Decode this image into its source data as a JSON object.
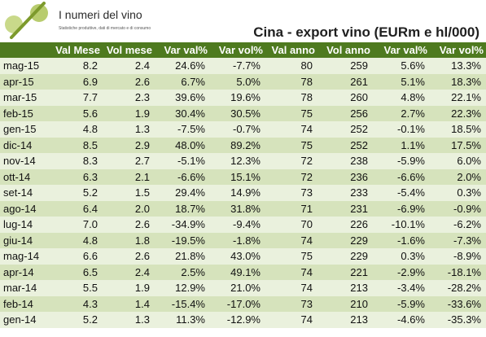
{
  "logo": {
    "title": "I numeri del vino",
    "subtitle": "Statistiche produttive, dati di mercato e di consumo"
  },
  "title": "Cina - export vino (EURm e hl/000)",
  "columns": [
    "",
    "Val Mese",
    "Vol mese",
    "Var val%",
    "Var vol%",
    "Val anno",
    "Vol anno",
    "Var val%",
    "Var vol%"
  ],
  "rows": [
    [
      "mag-15",
      "8.2",
      "2.4",
      "24.6%",
      "-7.7%",
      "80",
      "259",
      "5.6%",
      "13.3%"
    ],
    [
      "apr-15",
      "6.9",
      "2.6",
      "6.7%",
      "5.0%",
      "78",
      "261",
      "5.1%",
      "18.3%"
    ],
    [
      "mar-15",
      "7.7",
      "2.3",
      "39.6%",
      "19.6%",
      "78",
      "260",
      "4.8%",
      "22.1%"
    ],
    [
      "feb-15",
      "5.6",
      "1.9",
      "30.4%",
      "30.5%",
      "75",
      "256",
      "2.7%",
      "22.3%"
    ],
    [
      "gen-15",
      "4.8",
      "1.3",
      "-7.5%",
      "-0.7%",
      "74",
      "252",
      "-0.1%",
      "18.5%"
    ],
    [
      "dic-14",
      "8.5",
      "2.9",
      "48.0%",
      "89.2%",
      "75",
      "252",
      "1.1%",
      "17.5%"
    ],
    [
      "nov-14",
      "8.3",
      "2.7",
      "-5.1%",
      "12.3%",
      "72",
      "238",
      "-5.9%",
      "6.0%"
    ],
    [
      "ott-14",
      "6.3",
      "2.1",
      "-6.6%",
      "15.1%",
      "72",
      "236",
      "-6.6%",
      "2.0%"
    ],
    [
      "set-14",
      "5.2",
      "1.5",
      "29.4%",
      "14.9%",
      "73",
      "233",
      "-5.4%",
      "0.3%"
    ],
    [
      "ago-14",
      "6.4",
      "2.0",
      "18.7%",
      "31.8%",
      "71",
      "231",
      "-6.9%",
      "-0.9%"
    ],
    [
      "lug-14",
      "7.0",
      "2.6",
      "-34.9%",
      "-9.4%",
      "70",
      "226",
      "-10.1%",
      "-6.2%"
    ],
    [
      "giu-14",
      "4.8",
      "1.8",
      "-19.5%",
      "-1.8%",
      "74",
      "229",
      "-1.6%",
      "-7.3%"
    ],
    [
      "mag-14",
      "6.6",
      "2.6",
      "21.8%",
      "43.0%",
      "75",
      "229",
      "0.3%",
      "-8.9%"
    ],
    [
      "apr-14",
      "6.5",
      "2.4",
      "2.5%",
      "49.1%",
      "74",
      "221",
      "-2.9%",
      "-18.1%"
    ],
    [
      "mar-14",
      "5.5",
      "1.9",
      "12.9%",
      "21.0%",
      "74",
      "213",
      "-3.4%",
      "-28.2%"
    ],
    [
      "feb-14",
      "4.3",
      "1.4",
      "-15.4%",
      "-17.0%",
      "73",
      "210",
      "-5.9%",
      "-33.6%"
    ],
    [
      "gen-14",
      "5.2",
      "1.3",
      "11.3%",
      "-12.9%",
      "74",
      "213",
      "-4.6%",
      "-35.3%"
    ]
  ]
}
